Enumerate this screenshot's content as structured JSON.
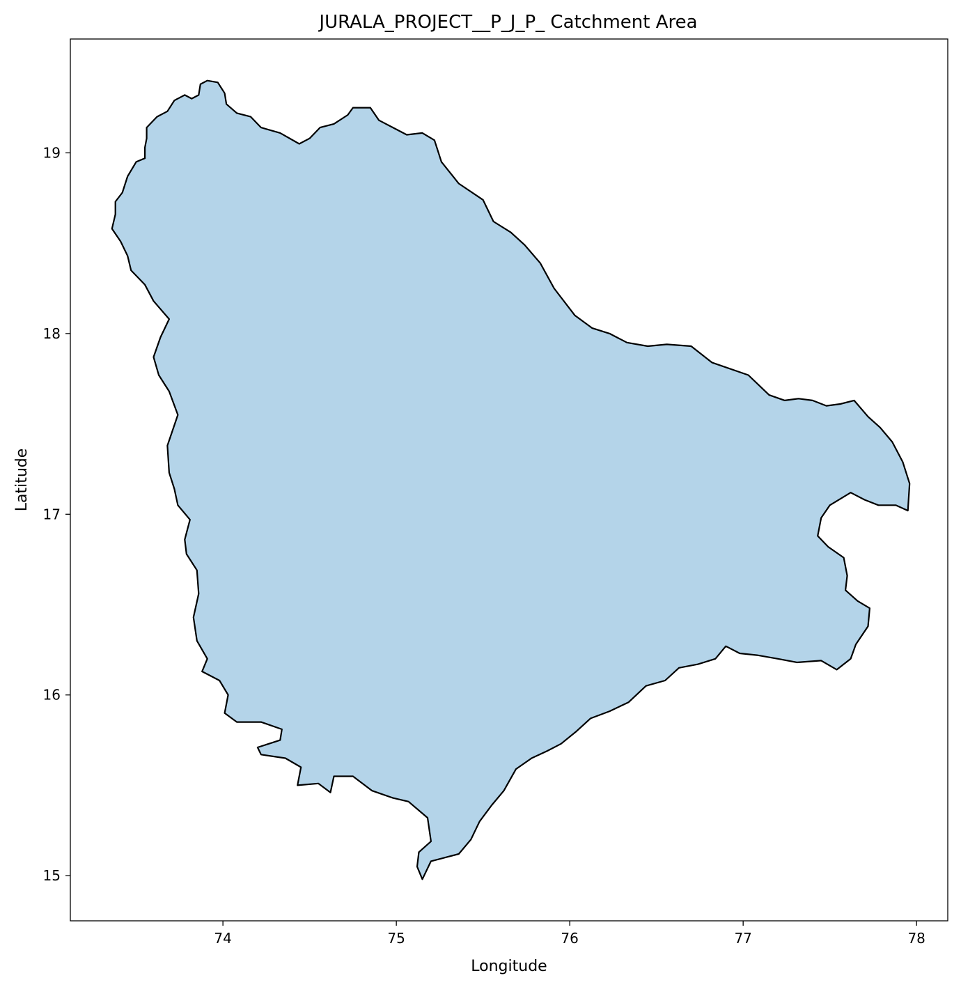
{
  "chart_data": {
    "type": "map",
    "title": "JURALA_PROJECT__P_J_P_ Catchment Area",
    "xlabel": "Longitude",
    "ylabel": "Latitude",
    "xlim": [
      73.12,
      78.18
    ],
    "ylim": [
      14.75,
      19.63
    ],
    "xticks": [
      74,
      75,
      76,
      77,
      78
    ],
    "yticks": [
      15,
      16,
      17,
      18,
      19
    ],
    "grid": false,
    "fill_color": "#b4d4e9",
    "edge_color": "#000000",
    "region": {
      "name": "",
      "boundary_lonlat": [
        [
          73.36,
          18.58
        ],
        [
          73.38,
          18.66
        ],
        [
          73.38,
          18.73
        ],
        [
          73.42,
          18.78
        ],
        [
          73.45,
          18.87
        ],
        [
          73.5,
          18.95
        ],
        [
          73.55,
          18.97
        ],
        [
          73.55,
          19.03
        ],
        [
          73.56,
          19.08
        ],
        [
          73.56,
          19.14
        ],
        [
          73.62,
          19.2
        ],
        [
          73.68,
          19.23
        ],
        [
          73.72,
          19.29
        ],
        [
          73.78,
          19.32
        ],
        [
          73.82,
          19.3
        ],
        [
          73.86,
          19.32
        ],
        [
          73.87,
          19.38
        ],
        [
          73.91,
          19.4
        ],
        [
          73.97,
          19.39
        ],
        [
          74.01,
          19.33
        ],
        [
          74.02,
          19.27
        ],
        [
          74.08,
          19.22
        ],
        [
          74.16,
          19.2
        ],
        [
          74.22,
          19.14
        ],
        [
          74.33,
          19.11
        ],
        [
          74.44,
          19.05
        ],
        [
          74.5,
          19.08
        ],
        [
          74.56,
          19.14
        ],
        [
          74.64,
          19.16
        ],
        [
          74.72,
          19.21
        ],
        [
          74.75,
          19.25
        ],
        [
          74.85,
          19.25
        ],
        [
          74.9,
          19.18
        ],
        [
          74.98,
          19.14
        ],
        [
          75.06,
          19.1
        ],
        [
          75.15,
          19.11
        ],
        [
          75.22,
          19.07
        ],
        [
          75.26,
          18.95
        ],
        [
          75.36,
          18.83
        ],
        [
          75.5,
          18.74
        ],
        [
          75.56,
          18.62
        ],
        [
          75.66,
          18.56
        ],
        [
          75.74,
          18.49
        ],
        [
          75.83,
          18.39
        ],
        [
          75.91,
          18.25
        ],
        [
          76.03,
          18.1
        ],
        [
          76.13,
          18.03
        ],
        [
          76.23,
          18.0
        ],
        [
          76.33,
          17.95
        ],
        [
          76.45,
          17.93
        ],
        [
          76.56,
          17.94
        ],
        [
          76.7,
          17.93
        ],
        [
          76.82,
          17.84
        ],
        [
          77.03,
          17.77
        ],
        [
          77.15,
          17.66
        ],
        [
          77.24,
          17.63
        ],
        [
          77.32,
          17.64
        ],
        [
          77.4,
          17.63
        ],
        [
          77.48,
          17.6
        ],
        [
          77.56,
          17.61
        ],
        [
          77.64,
          17.63
        ],
        [
          77.72,
          17.54
        ],
        [
          77.79,
          17.48
        ],
        [
          77.86,
          17.4
        ],
        [
          77.92,
          17.29
        ],
        [
          77.96,
          17.17
        ],
        [
          77.95,
          17.02
        ],
        [
          77.88,
          17.05
        ],
        [
          77.78,
          17.05
        ],
        [
          77.7,
          17.08
        ],
        [
          77.62,
          17.12
        ],
        [
          77.5,
          17.05
        ],
        [
          77.45,
          16.98
        ],
        [
          77.43,
          16.88
        ],
        [
          77.49,
          16.82
        ],
        [
          77.58,
          16.76
        ],
        [
          77.6,
          16.66
        ],
        [
          77.59,
          16.58
        ],
        [
          77.66,
          16.52
        ],
        [
          77.73,
          16.48
        ],
        [
          77.72,
          16.38
        ],
        [
          77.65,
          16.28
        ],
        [
          77.62,
          16.2
        ],
        [
          77.54,
          16.14
        ],
        [
          77.45,
          16.19
        ],
        [
          77.31,
          16.18
        ],
        [
          77.2,
          16.2
        ],
        [
          77.08,
          16.22
        ],
        [
          76.98,
          16.23
        ],
        [
          76.9,
          16.27
        ],
        [
          76.84,
          16.2
        ],
        [
          76.74,
          16.17
        ],
        [
          76.63,
          16.15
        ],
        [
          76.55,
          16.08
        ],
        [
          76.44,
          16.05
        ],
        [
          76.34,
          15.96
        ],
        [
          76.23,
          15.91
        ],
        [
          76.12,
          15.87
        ],
        [
          76.04,
          15.8
        ],
        [
          75.95,
          15.73
        ],
        [
          75.87,
          15.69
        ],
        [
          75.78,
          15.65
        ],
        [
          75.69,
          15.59
        ],
        [
          75.62,
          15.47
        ],
        [
          75.55,
          15.39
        ],
        [
          75.48,
          15.3
        ],
        [
          75.43,
          15.2
        ],
        [
          75.36,
          15.12
        ],
        [
          75.28,
          15.1
        ],
        [
          75.2,
          15.08
        ],
        [
          75.15,
          14.98
        ],
        [
          75.12,
          15.05
        ],
        [
          75.13,
          15.13
        ],
        [
          75.2,
          15.19
        ],
        [
          75.18,
          15.32
        ],
        [
          75.07,
          15.41
        ],
        [
          74.98,
          15.43
        ],
        [
          74.86,
          15.47
        ],
        [
          74.75,
          15.55
        ],
        [
          74.64,
          15.55
        ],
        [
          74.62,
          15.46
        ],
        [
          74.55,
          15.51
        ],
        [
          74.43,
          15.5
        ],
        [
          74.45,
          15.6
        ],
        [
          74.36,
          15.65
        ],
        [
          74.22,
          15.67
        ],
        [
          74.2,
          15.71
        ],
        [
          74.33,
          15.75
        ],
        [
          74.34,
          15.81
        ],
        [
          74.22,
          15.85
        ],
        [
          74.08,
          15.85
        ],
        [
          74.01,
          15.9
        ],
        [
          74.03,
          16.0
        ],
        [
          73.98,
          16.08
        ],
        [
          73.88,
          16.13
        ],
        [
          73.91,
          16.2
        ],
        [
          73.85,
          16.3
        ],
        [
          73.83,
          16.43
        ],
        [
          73.86,
          16.56
        ],
        [
          73.85,
          16.69
        ],
        [
          73.79,
          16.78
        ],
        [
          73.78,
          16.86
        ],
        [
          73.81,
          16.97
        ],
        [
          73.74,
          17.05
        ],
        [
          73.72,
          17.14
        ],
        [
          73.69,
          17.23
        ],
        [
          73.68,
          17.38
        ],
        [
          73.74,
          17.55
        ],
        [
          73.69,
          17.68
        ],
        [
          73.63,
          17.77
        ],
        [
          73.6,
          17.87
        ],
        [
          73.64,
          17.98
        ],
        [
          73.69,
          18.08
        ],
        [
          73.6,
          18.18
        ],
        [
          73.55,
          18.27
        ],
        [
          73.47,
          18.35
        ],
        [
          73.45,
          18.43
        ],
        [
          73.41,
          18.51
        ]
      ]
    }
  }
}
